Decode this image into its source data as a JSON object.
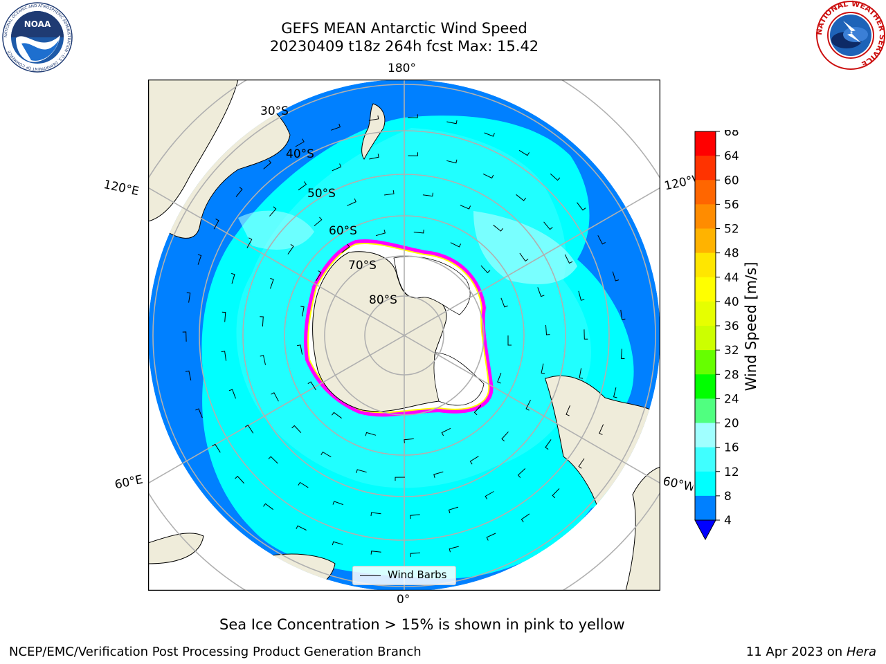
{
  "title": {
    "line1": "GEFS MEAN Antarctic Wind Speed",
    "line2": "20230409 t18z 264h fcst   Max: 15.42"
  },
  "map": {
    "projection": "south-polar-stereographic",
    "labels": {
      "lon_180": "180°",
      "lon_0": "0°",
      "lon_120e": "120°E",
      "lon_60e": "60°E",
      "lon_120w": "120°W",
      "lon_60w": "60°W",
      "lat_30": "30°S",
      "lat_40": "40°S",
      "lat_50": "50°S",
      "lat_60": "60°S",
      "lat_70": "70°S",
      "lat_80": "80°S"
    },
    "legend": {
      "wind_barbs": "Wind Barbs"
    },
    "colors": {
      "land": "#efecda",
      "ocean_4_8": "#0080ff",
      "ocean_8_12": "#00ffff",
      "ocean_12_16": "#40ffff",
      "ocean_16_20": "#a0ffff",
      "sea_ice_low": "#ff00ff",
      "sea_ice_high": "#ffff00",
      "gridline": "#b0b0b0"
    }
  },
  "colorbar": {
    "label": "Wind Speed [m/s]",
    "ticks": [
      "68",
      "64",
      "60",
      "56",
      "52",
      "48",
      "44",
      "40",
      "36",
      "32",
      "28",
      "24",
      "20",
      "16",
      "12",
      "8",
      "4"
    ],
    "bins": [
      {
        "from": 64,
        "to": 68,
        "color": "#ff0000"
      },
      {
        "from": 60,
        "to": 64,
        "color": "#ff3300"
      },
      {
        "from": 56,
        "to": 60,
        "color": "#ff6600"
      },
      {
        "from": 52,
        "to": 56,
        "color": "#ff8c00"
      },
      {
        "from": 48,
        "to": 52,
        "color": "#ffb300"
      },
      {
        "from": 44,
        "to": 48,
        "color": "#ffe600"
      },
      {
        "from": 40,
        "to": 44,
        "color": "#ffff00"
      },
      {
        "from": 36,
        "to": 40,
        "color": "#e6ff00"
      },
      {
        "from": 32,
        "to": 36,
        "color": "#ccff00"
      },
      {
        "from": 28,
        "to": 32,
        "color": "#66ff00"
      },
      {
        "from": 24,
        "to": 28,
        "color": "#00ff00"
      },
      {
        "from": 20,
        "to": 24,
        "color": "#50ff80"
      },
      {
        "from": 16,
        "to": 20,
        "color": "#a0ffff"
      },
      {
        "from": 12,
        "to": 16,
        "color": "#40ffff"
      },
      {
        "from": 8,
        "to": 12,
        "color": "#00ffff"
      },
      {
        "from": 4,
        "to": 8,
        "color": "#0080ff"
      }
    ],
    "under_color": "#0000ff"
  },
  "caption": "Sea Ice Concentration > 15% is shown in pink to yellow",
  "footer": {
    "left": "NCEP/EMC/Verification Post Processing Product Generation Branch",
    "right_date": "11 Apr 2023 on ",
    "right_machine": "Hera"
  },
  "logos": {
    "noaa_text": "NOAA",
    "noaa_ring": "NATIONAL OCEANIC AND ATMOSPHERIC ADMINISTRATION · U.S. DEPARTMENT OF COMMERCE",
    "nws_ring": "NATIONAL WEATHER SERVICE"
  }
}
